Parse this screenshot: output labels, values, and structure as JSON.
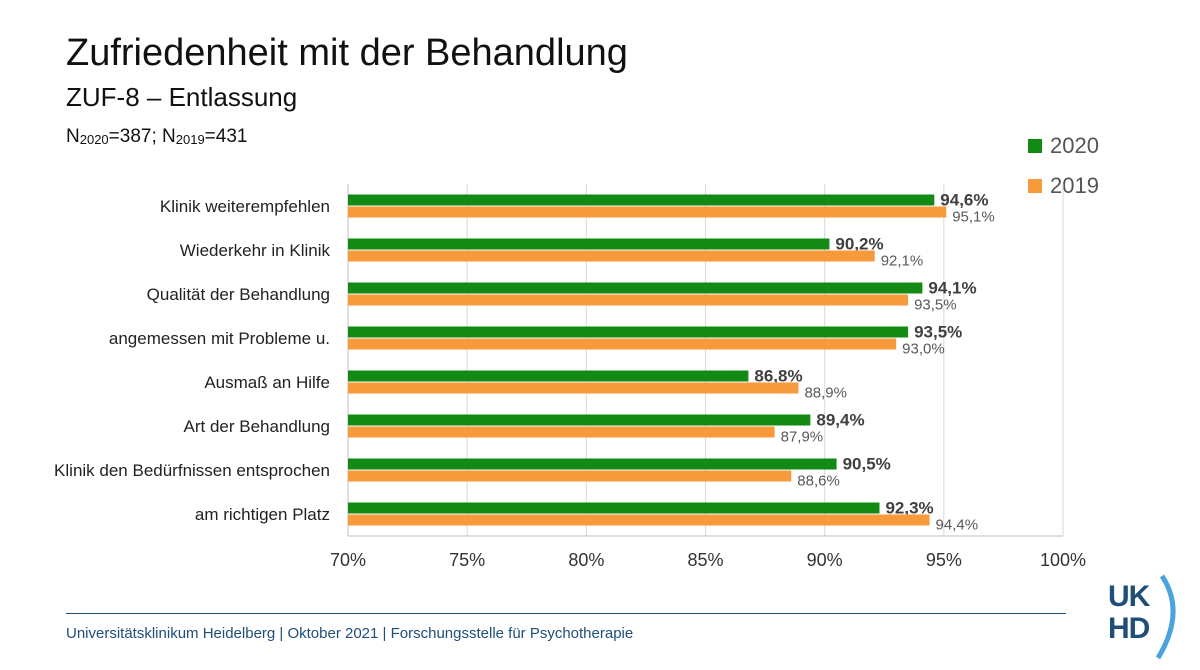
{
  "title": "Zufriedenheit mit der Behandlung",
  "subtitle": "ZUF-8 – Entlassung",
  "sample": {
    "n_prefix": "N",
    "sub2020": "2020",
    "eq2020": "=387; ",
    "n_prefix2": "N",
    "sub2019": "2019",
    "eq2019": "=431"
  },
  "legend": {
    "s2020": "2020",
    "s2019": "2019"
  },
  "colors": {
    "s2020": "#138a13",
    "s2019": "#f79a3c",
    "grid": "#d9d9d9",
    "footer": "#1f4e79"
  },
  "footer": {
    "text": "Universitätsklinikum Heidelberg  | Oktober 2021 | Forschungsstelle für Psychotherapie"
  },
  "logo": {
    "line1": "UK",
    "line2": "HD"
  },
  "chart_data": {
    "type": "bar",
    "orientation": "horizontal",
    "categories": [
      "Klinik weiterempfehlen",
      "Wiederkehr in Klinik",
      "Qualität der Behandlung",
      "angemessen mit Probleme u.",
      "Ausmaß an Hilfe",
      "Art der Behandlung",
      "Klinik den Bedürfnissen entsprochen",
      "am richtigen Platz"
    ],
    "series": [
      {
        "name": "2020",
        "values": [
          94.6,
          90.2,
          94.1,
          93.5,
          86.8,
          89.4,
          90.5,
          92.3
        ],
        "labels": [
          "94,6%",
          "90,2%",
          "94,1%",
          "93,5%",
          "86,8%",
          "89,4%",
          "90,5%",
          "92,3%"
        ]
      },
      {
        "name": "2019",
        "values": [
          95.1,
          92.1,
          93.5,
          93.0,
          88.9,
          87.9,
          88.6,
          94.4
        ],
        "labels": [
          "95,1%",
          "92,1%",
          "93,5%",
          "93,0%",
          "88,9%",
          "87,9%",
          "88,6%",
          "94,4%"
        ]
      }
    ],
    "xlim": [
      70,
      100
    ],
    "xticks": [
      70,
      75,
      80,
      85,
      90,
      95,
      100
    ],
    "xtick_labels": [
      "70%",
      "75%",
      "80%",
      "85%",
      "90%",
      "95%",
      "100%"
    ],
    "grid": true,
    "legend_position": "top-right"
  }
}
